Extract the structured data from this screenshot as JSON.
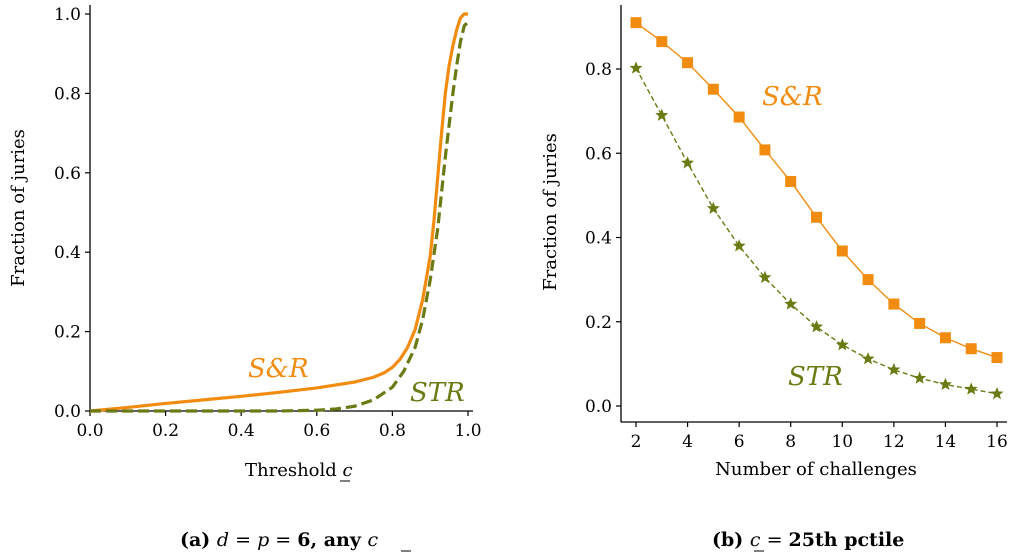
{
  "colors": {
    "snr": "#f28c10",
    "str": "#6b7a12"
  },
  "chart_data": [
    {
      "type": "line",
      "xlabel": "Threshold c",
      "ylabel": "Fraction of juries",
      "xlim": [
        0.0,
        1.0
      ],
      "ylim": [
        0.0,
        1.0
      ],
      "xticks": [
        "0.0",
        "0.2",
        "0.4",
        "0.6",
        "0.8",
        "1.0"
      ],
      "yticks": [
        "0.0",
        "0.2",
        "0.4",
        "0.6",
        "0.8",
        "1.0"
      ],
      "series": [
        {
          "name": "S&R",
          "style": "solid",
          "x": [
            0.0,
            0.1,
            0.2,
            0.3,
            0.4,
            0.5,
            0.6,
            0.7,
            0.75,
            0.78,
            0.8,
            0.82,
            0.84,
            0.86,
            0.88,
            0.9,
            0.91,
            0.92,
            0.93,
            0.94,
            0.95,
            0.96,
            0.97,
            0.98,
            0.99,
            1.0
          ],
          "y": [
            0.0,
            0.009,
            0.019,
            0.028,
            0.037,
            0.047,
            0.058,
            0.073,
            0.085,
            0.097,
            0.11,
            0.13,
            0.16,
            0.205,
            0.28,
            0.39,
            0.48,
            0.59,
            0.7,
            0.8,
            0.87,
            0.92,
            0.96,
            0.99,
            1.0,
            1.0
          ]
        },
        {
          "name": "STR",
          "style": "dashed",
          "x": [
            0.0,
            0.3,
            0.5,
            0.6,
            0.65,
            0.7,
            0.75,
            0.8,
            0.83,
            0.86,
            0.88,
            0.9,
            0.92,
            0.93,
            0.94,
            0.95,
            0.96,
            0.97,
            0.98,
            0.99,
            1.0
          ],
          "y": [
            0.0,
            0.0,
            0.0,
            0.002,
            0.005,
            0.012,
            0.028,
            0.06,
            0.1,
            0.16,
            0.23,
            0.33,
            0.46,
            0.55,
            0.64,
            0.72,
            0.8,
            0.87,
            0.93,
            0.97,
            0.98
          ]
        }
      ],
      "annotations": [
        "S&R",
        "STR"
      ],
      "caption": "(a) d = p = 6, any c"
    },
    {
      "type": "line",
      "xlabel": "Number of challenges",
      "ylabel": "Fraction of juries",
      "xlim": [
        1.5,
        16.5
      ],
      "ylim": [
        0.0,
        0.95
      ],
      "xticks": [
        "2",
        "4",
        "6",
        "8",
        "10",
        "12",
        "14",
        "16"
      ],
      "yticks": [
        "0.0",
        "0.2",
        "0.4",
        "0.6",
        "0.8"
      ],
      "series": [
        {
          "name": "S&R",
          "marker": "square",
          "style": "solid",
          "x": [
            2,
            3,
            4,
            5,
            6,
            7,
            8,
            9,
            10,
            11,
            12,
            13,
            14,
            15,
            16
          ],
          "y": [
            0.91,
            0.865,
            0.815,
            0.752,
            0.686,
            0.608,
            0.533,
            0.448,
            0.368,
            0.3,
            0.242,
            0.196,
            0.162,
            0.136,
            0.115
          ]
        },
        {
          "name": "STR",
          "marker": "star",
          "style": "dashed",
          "x": [
            2,
            3,
            4,
            5,
            6,
            7,
            8,
            9,
            10,
            11,
            12,
            13,
            14,
            15,
            16
          ],
          "y": [
            0.802,
            0.69,
            0.577,
            0.469,
            0.38,
            0.305,
            0.242,
            0.188,
            0.145,
            0.112,
            0.086,
            0.066,
            0.051,
            0.04,
            0.029
          ]
        }
      ],
      "annotations": [
        "S&R",
        "STR"
      ],
      "caption": "(b) c = 25th pctile"
    }
  ]
}
